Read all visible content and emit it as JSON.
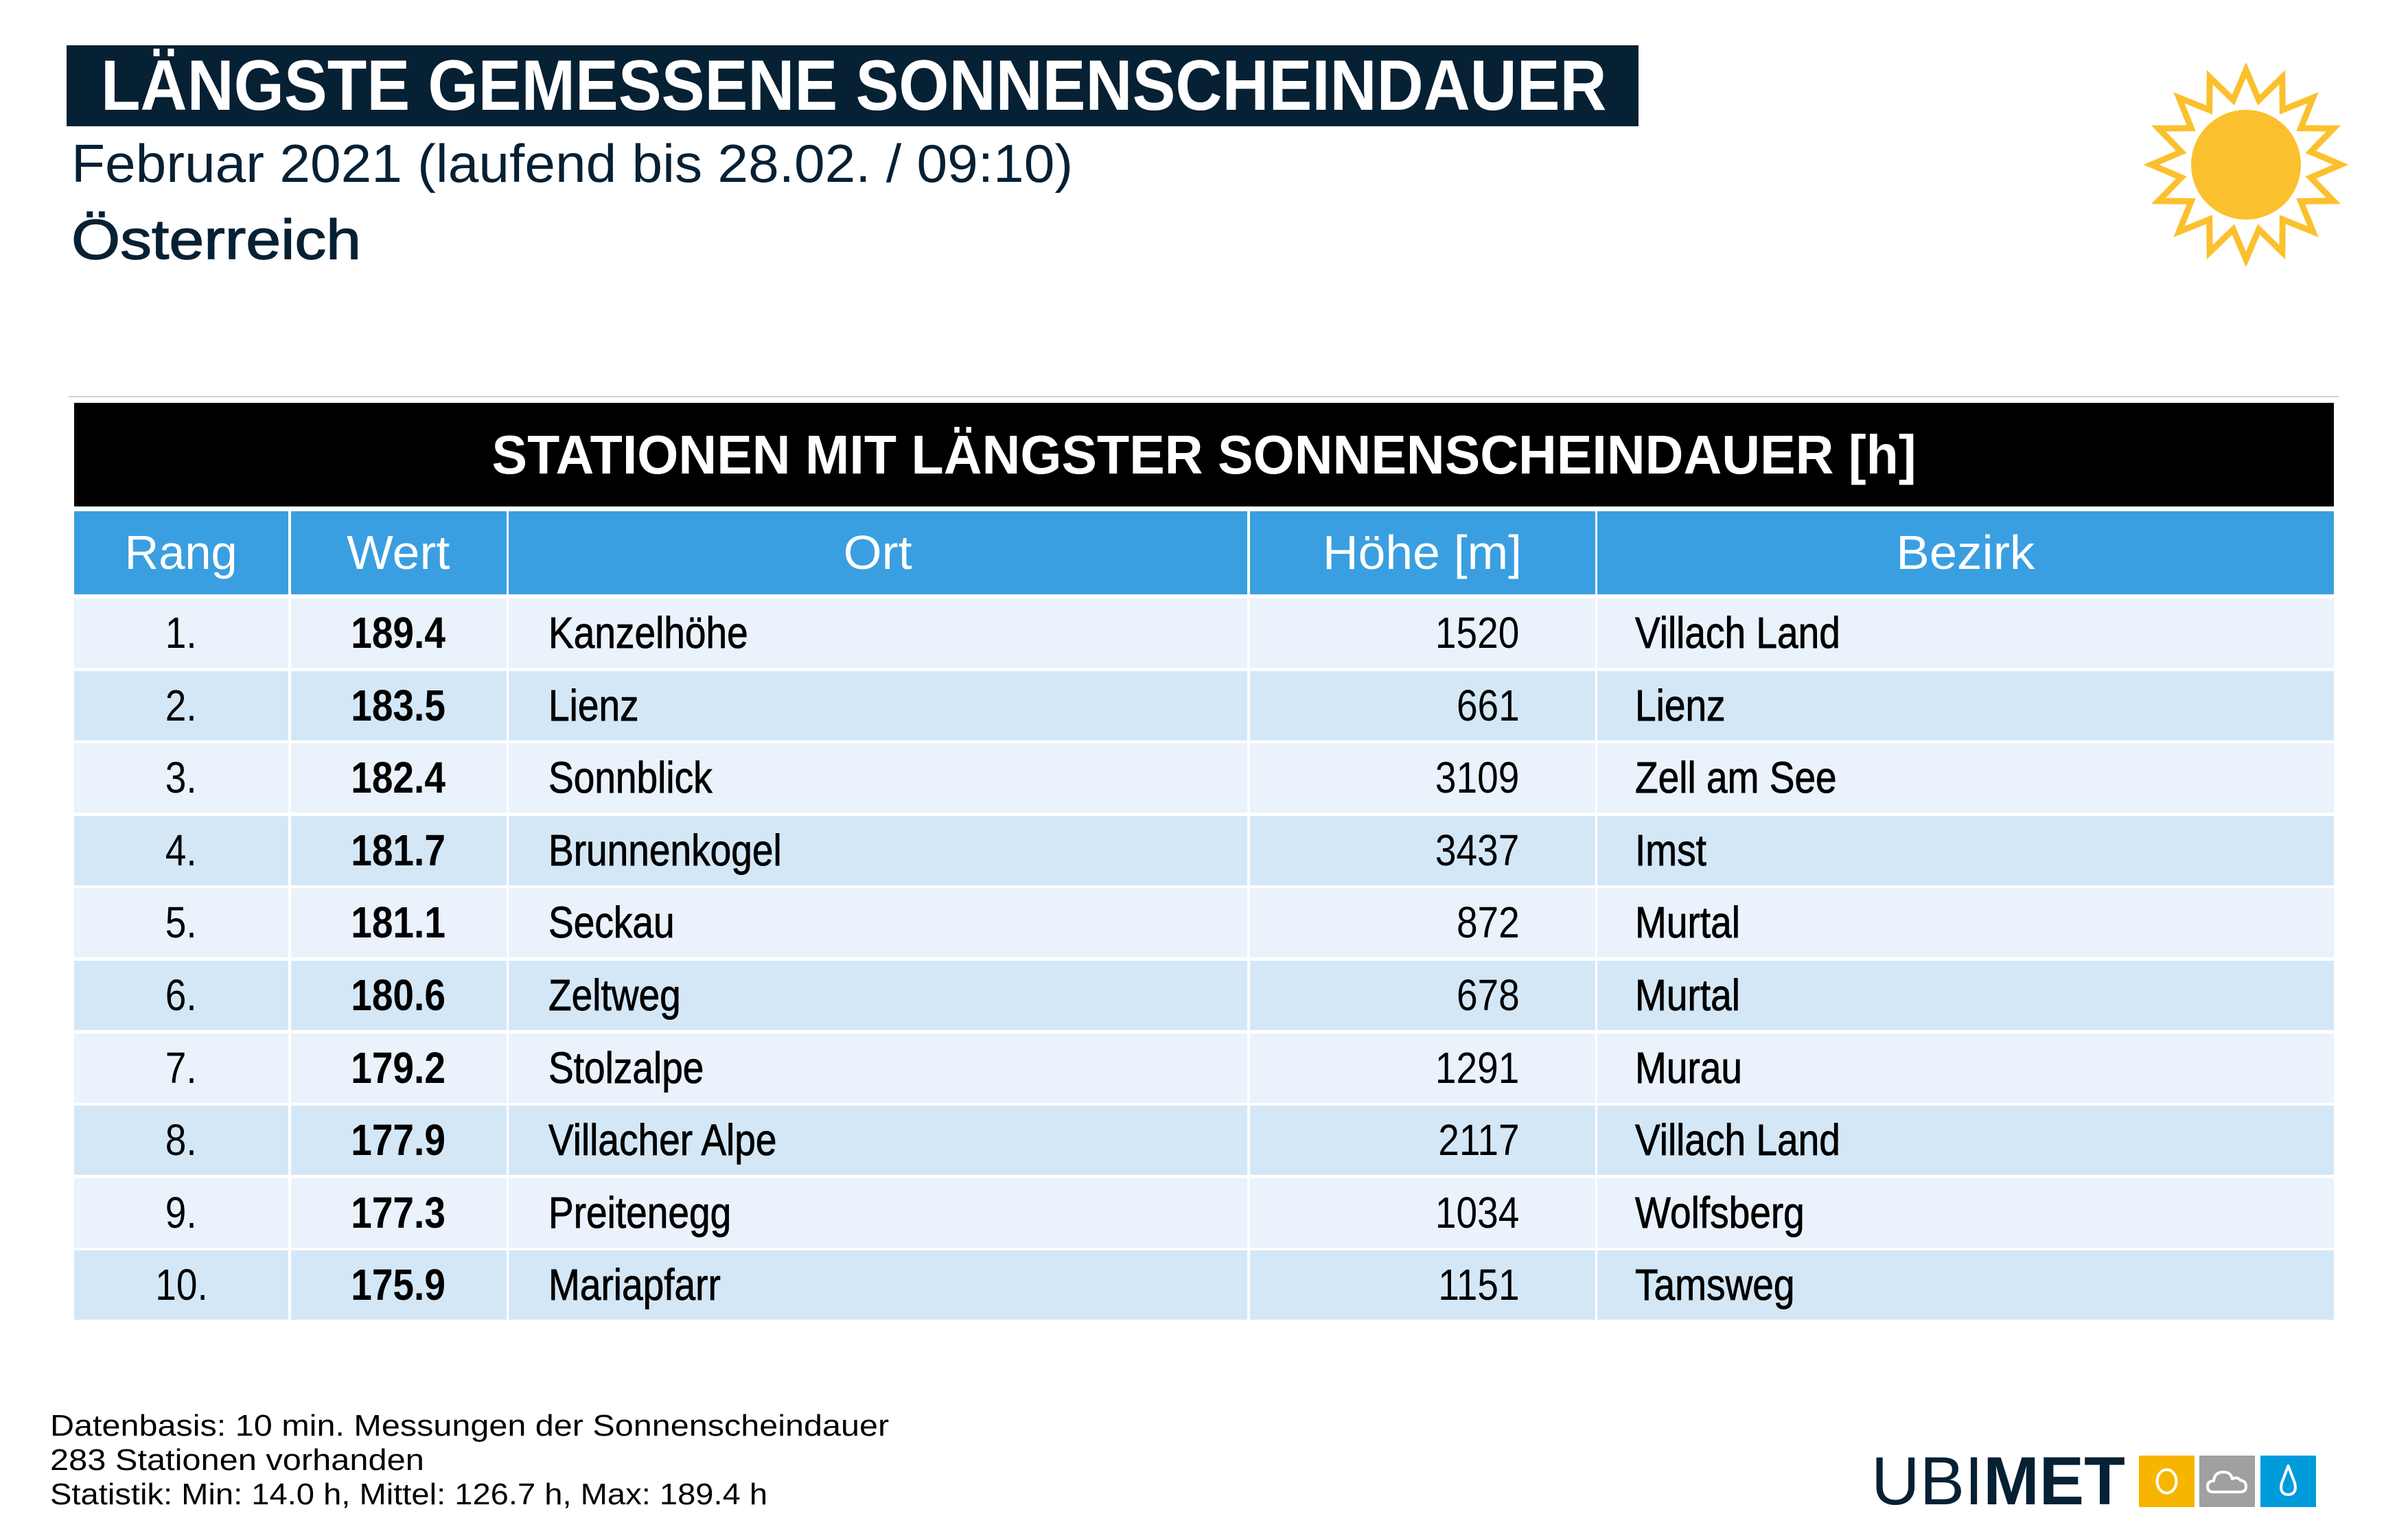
{
  "header": {
    "title": "LÄNGSTE GEMESSENE SONNENSCHEINDAUER",
    "subtitle": "Februar 2021 (laufend bis 28.02. / 09:10)",
    "region": "Österreich",
    "weather_icon": "sun-icon"
  },
  "table": {
    "title": "STATIONEN MIT LÄNGSTER SONNENSCHEINDAUER [h]",
    "columns": [
      "Rang",
      "Wert",
      "Ort",
      "Höhe [m]",
      "Bezirk"
    ],
    "rows": [
      {
        "rang": "1.",
        "wert": "189.4",
        "ort": "Kanzelhöhe",
        "hoehe": "1520",
        "bezirk": "Villach Land"
      },
      {
        "rang": "2.",
        "wert": "183.5",
        "ort": "Lienz",
        "hoehe": "661",
        "bezirk": "Lienz"
      },
      {
        "rang": "3.",
        "wert": "182.4",
        "ort": "Sonnblick",
        "hoehe": "3109",
        "bezirk": "Zell am See"
      },
      {
        "rang": "4.",
        "wert": "181.7",
        "ort": "Brunnenkogel",
        "hoehe": "3437",
        "bezirk": "Imst"
      },
      {
        "rang": "5.",
        "wert": "181.1",
        "ort": "Seckau",
        "hoehe": "872",
        "bezirk": "Murtal"
      },
      {
        "rang": "6.",
        "wert": "180.6",
        "ort": "Zeltweg",
        "hoehe": "678",
        "bezirk": "Murtal"
      },
      {
        "rang": "7.",
        "wert": "179.2",
        "ort": "Stolzalpe",
        "hoehe": "1291",
        "bezirk": "Murau"
      },
      {
        "rang": "8.",
        "wert": "177.9",
        "ort": "Villacher Alpe",
        "hoehe": "2117",
        "bezirk": "Villach Land"
      },
      {
        "rang": "9.",
        "wert": "177.3",
        "ort": "Preitenegg",
        "hoehe": "1034",
        "bezirk": "Wolfsberg"
      },
      {
        "rang": "10.",
        "wert": "175.9",
        "ort": "Mariapfarr",
        "hoehe": "1151",
        "bezirk": "Tamsweg"
      }
    ]
  },
  "footer": {
    "lines": [
      "Datenbasis: 10 min. Messungen der Sonnenscheindauer",
      "283 Stationen vorhanden",
      "Statistik: Min: 14.0 h, Mittel: 126.7 h, Max: 189.4 h"
    ]
  },
  "logo": {
    "word_light": "UBI",
    "word_heavy": "MET",
    "icons": [
      "sun-icon",
      "cloud-icon",
      "drop-icon"
    ]
  },
  "colors": {
    "navy": "#062034",
    "header_blue": "#3a9fe0",
    "row_light": "#eaf2fc",
    "row_dark": "#d4e7f7",
    "sun_yellow": "#fbc02d",
    "logo_yellow": "#f7b500",
    "logo_gray": "#a0a0a0",
    "logo_blue": "#009bdb"
  }
}
